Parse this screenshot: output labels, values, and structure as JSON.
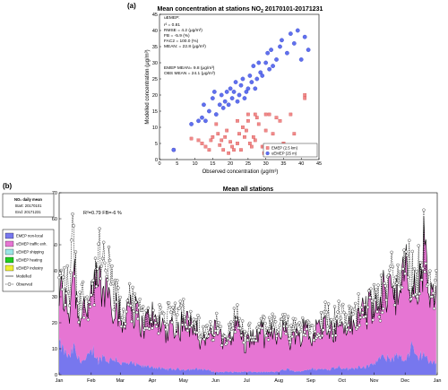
{
  "chart_data": [
    {
      "type": "scatter",
      "panel_label": "(a)",
      "title_pre": "Mean concentration at stations NO",
      "title_sub": "2",
      "title_post": " 20170101-20171231",
      "xlabel": "Observed concentration (μg/m³)",
      "ylabel": "Modelled concentration (μg/m³)",
      "xlim": [
        0,
        45
      ],
      "ylim": [
        0,
        45
      ],
      "xticks": [
        "0",
        "5",
        "10",
        "15",
        "20",
        "25",
        "30",
        "35",
        "40",
        "45"
      ],
      "yticks": [
        "0",
        "5",
        "10",
        "15",
        "20",
        "25",
        "30",
        "35",
        "40",
        "45"
      ],
      "stats": [
        "uEMEP:",
        "r² = 0.81",
        "RMSE = 4.2 (μg/m³)",
        "FB = -5.9 (%)",
        "FAC2 = 100.0 (%)",
        "MEAN: = 22.8 (μg/m³)",
        "EMEP MEAN= 9.8 (μg/m³)",
        "OBS MEAN = 24.1 (μg/m³)"
      ],
      "legend_position": "bottom-right",
      "series": [
        {
          "name": "EMEP (2.5 km)",
          "marker": "square",
          "color": "#f08a8a",
          "points": [
            [
              4,
              3
            ],
            [
              9,
              6.5
            ],
            [
              11,
              6
            ],
            [
              12,
              5
            ],
            [
              13,
              4
            ],
            [
              14,
              3
            ],
            [
              14.5,
              6
            ],
            [
              15,
              7
            ],
            [
              16,
              11
            ],
            [
              16.5,
              8
            ],
            [
              17,
              4.5
            ],
            [
              17.5,
              6
            ],
            [
              18,
              3
            ],
            [
              18.5,
              7
            ],
            [
              19,
              9
            ],
            [
              19.5,
              2
            ],
            [
              20,
              5.5
            ],
            [
              20.5,
              4
            ],
            [
              21,
              3
            ],
            [
              22,
              12
            ],
            [
              22,
              5
            ],
            [
              22.5,
              8
            ],
            [
              23,
              3
            ],
            [
              23.5,
              10
            ],
            [
              24,
              7
            ],
            [
              24.5,
              9
            ],
            [
              25,
              14
            ],
            [
              25,
              12
            ],
            [
              25.5,
              5
            ],
            [
              26,
              4
            ],
            [
              26.5,
              7
            ],
            [
              27,
              6
            ],
            [
              27,
              14
            ],
            [
              27.5,
              13
            ],
            [
              28,
              11
            ],
            [
              29,
              4
            ],
            [
              29.5,
              2
            ],
            [
              30,
              14
            ],
            [
              30,
              9
            ],
            [
              31,
              14
            ],
            [
              32,
              8
            ],
            [
              33,
              13
            ],
            [
              34,
              12
            ],
            [
              35,
              5
            ],
            [
              37,
              14
            ],
            [
              38,
              8
            ],
            [
              41,
              20
            ],
            [
              41,
              19
            ]
          ]
        },
        {
          "name": "uEMEP (25 m)",
          "marker": "circle",
          "color": "#6070ee",
          "points": [
            [
              4,
              3
            ],
            [
              9,
              11
            ],
            [
              11,
              12
            ],
            [
              12,
              13
            ],
            [
              12.5,
              17
            ],
            [
              13,
              12
            ],
            [
              14,
              15
            ],
            [
              15,
              19
            ],
            [
              15.5,
              21
            ],
            [
              16,
              14
            ],
            [
              17,
              17
            ],
            [
              17.5,
              20
            ],
            [
              18,
              16
            ],
            [
              18.5,
              18
            ],
            [
              19,
              21
            ],
            [
              19.5,
              17
            ],
            [
              20,
              22
            ],
            [
              20.5,
              19
            ],
            [
              21,
              21
            ],
            [
              21.5,
              24
            ],
            [
              22,
              18
            ],
            [
              22.5,
              20
            ],
            [
              23,
              23
            ],
            [
              23.5,
              25
            ],
            [
              24,
              19
            ],
            [
              24.5,
              21
            ],
            [
              25,
              22
            ],
            [
              25.5,
              26
            ],
            [
              26,
              24
            ],
            [
              26.5,
              29
            ],
            [
              27,
              22
            ],
            [
              27.5,
              25
            ],
            [
              28,
              30
            ],
            [
              28.5,
              27
            ],
            [
              29,
              26
            ],
            [
              30,
              30
            ],
            [
              30.5,
              33
            ],
            [
              31,
              28
            ],
            [
              31.5,
              34
            ],
            [
              32,
              29
            ],
            [
              33,
              31
            ],
            [
              34,
              35
            ],
            [
              34.5,
              37
            ],
            [
              36,
              33
            ],
            [
              37,
              39
            ],
            [
              38,
              36
            ],
            [
              39,
              40
            ],
            [
              40,
              31
            ],
            [
              41,
              38
            ],
            [
              42,
              34
            ]
          ]
        }
      ]
    },
    {
      "type": "area",
      "panel_label": "(b)",
      "title": "Mean all stations",
      "stacked": true,
      "ylim": [
        0,
        70
      ],
      "yticks": [
        "0",
        "10",
        "20",
        "30",
        "40",
        "50",
        "60",
        "70"
      ],
      "xticks": [
        "Jan",
        "Feb",
        "Mar",
        "Apr",
        "May",
        "Jun",
        "Jul",
        "Aug",
        "Sep",
        "Oct",
        "Nov",
        "Dec",
        "Jan"
      ],
      "annotation": "R²=0.79 FB=-6 %",
      "legend": {
        "title": "NO₂ daily mean",
        "start": "Start: 20170101",
        "end": "End: 20171231",
        "items": [
          {
            "name": "EMEP non-local",
            "color": "#7777ee"
          },
          {
            "name": "uEMEP traffic exh.",
            "color": "#e675d3"
          },
          {
            "name": "uEMEP shipping",
            "color": "#9be6e6"
          },
          {
            "name": "uEMEP heating",
            "color": "#22cc22"
          },
          {
            "name": "uEMEP industry",
            "color": "#eeee33"
          },
          {
            "name": "Modelled",
            "color": "#000000"
          },
          {
            "name": "Observed",
            "color": "#000000"
          }
        ]
      },
      "keypoints": [
        [
          0,
          11,
          30,
          34
        ],
        [
          10,
          6,
          25,
          33
        ],
        [
          14,
          10,
          45,
          55
        ],
        [
          18,
          6,
          26,
          30
        ],
        [
          25,
          5,
          24,
          27
        ],
        [
          33,
          9,
          30,
          32
        ],
        [
          38,
          5,
          40,
          45
        ],
        [
          42,
          7,
          30,
          40
        ],
        [
          47,
          5,
          32,
          38
        ],
        [
          55,
          6,
          28,
          30
        ],
        [
          60,
          4,
          20,
          22
        ],
        [
          70,
          4,
          28,
          27
        ],
        [
          80,
          3,
          20,
          22
        ],
        [
          90,
          3,
          21,
          20
        ],
        [
          100,
          2,
          20,
          24
        ],
        [
          110,
          2,
          16,
          19
        ],
        [
          120,
          2,
          22,
          26
        ],
        [
          130,
          2,
          18,
          20
        ],
        [
          140,
          2,
          14,
          15
        ],
        [
          150,
          1,
          16,
          17
        ],
        [
          160,
          1,
          14,
          16
        ],
        [
          170,
          1,
          18,
          21
        ],
        [
          180,
          1,
          14,
          16
        ],
        [
          190,
          1,
          14,
          15
        ],
        [
          200,
          1,
          16,
          18
        ],
        [
          210,
          1,
          16,
          17
        ],
        [
          220,
          2,
          17,
          19
        ],
        [
          230,
          1,
          14,
          15
        ],
        [
          240,
          2,
          18,
          20
        ],
        [
          250,
          2,
          16,
          18
        ],
        [
          260,
          2,
          20,
          23
        ],
        [
          270,
          3,
          18,
          21
        ],
        [
          280,
          2,
          18,
          20
        ],
        [
          290,
          3,
          24,
          25
        ],
        [
          300,
          3,
          25,
          27
        ],
        [
          310,
          6,
          28,
          28
        ],
        [
          320,
          6,
          35,
          37
        ],
        [
          330,
          7,
          32,
          35
        ],
        [
          335,
          5,
          40,
          42
        ],
        [
          340,
          10,
          32,
          40
        ],
        [
          345,
          6,
          30,
          36
        ],
        [
          352,
          8,
          48,
          55
        ],
        [
          358,
          4,
          28,
          30
        ],
        [
          364,
          5,
          30,
          32
        ]
      ]
    }
  ]
}
